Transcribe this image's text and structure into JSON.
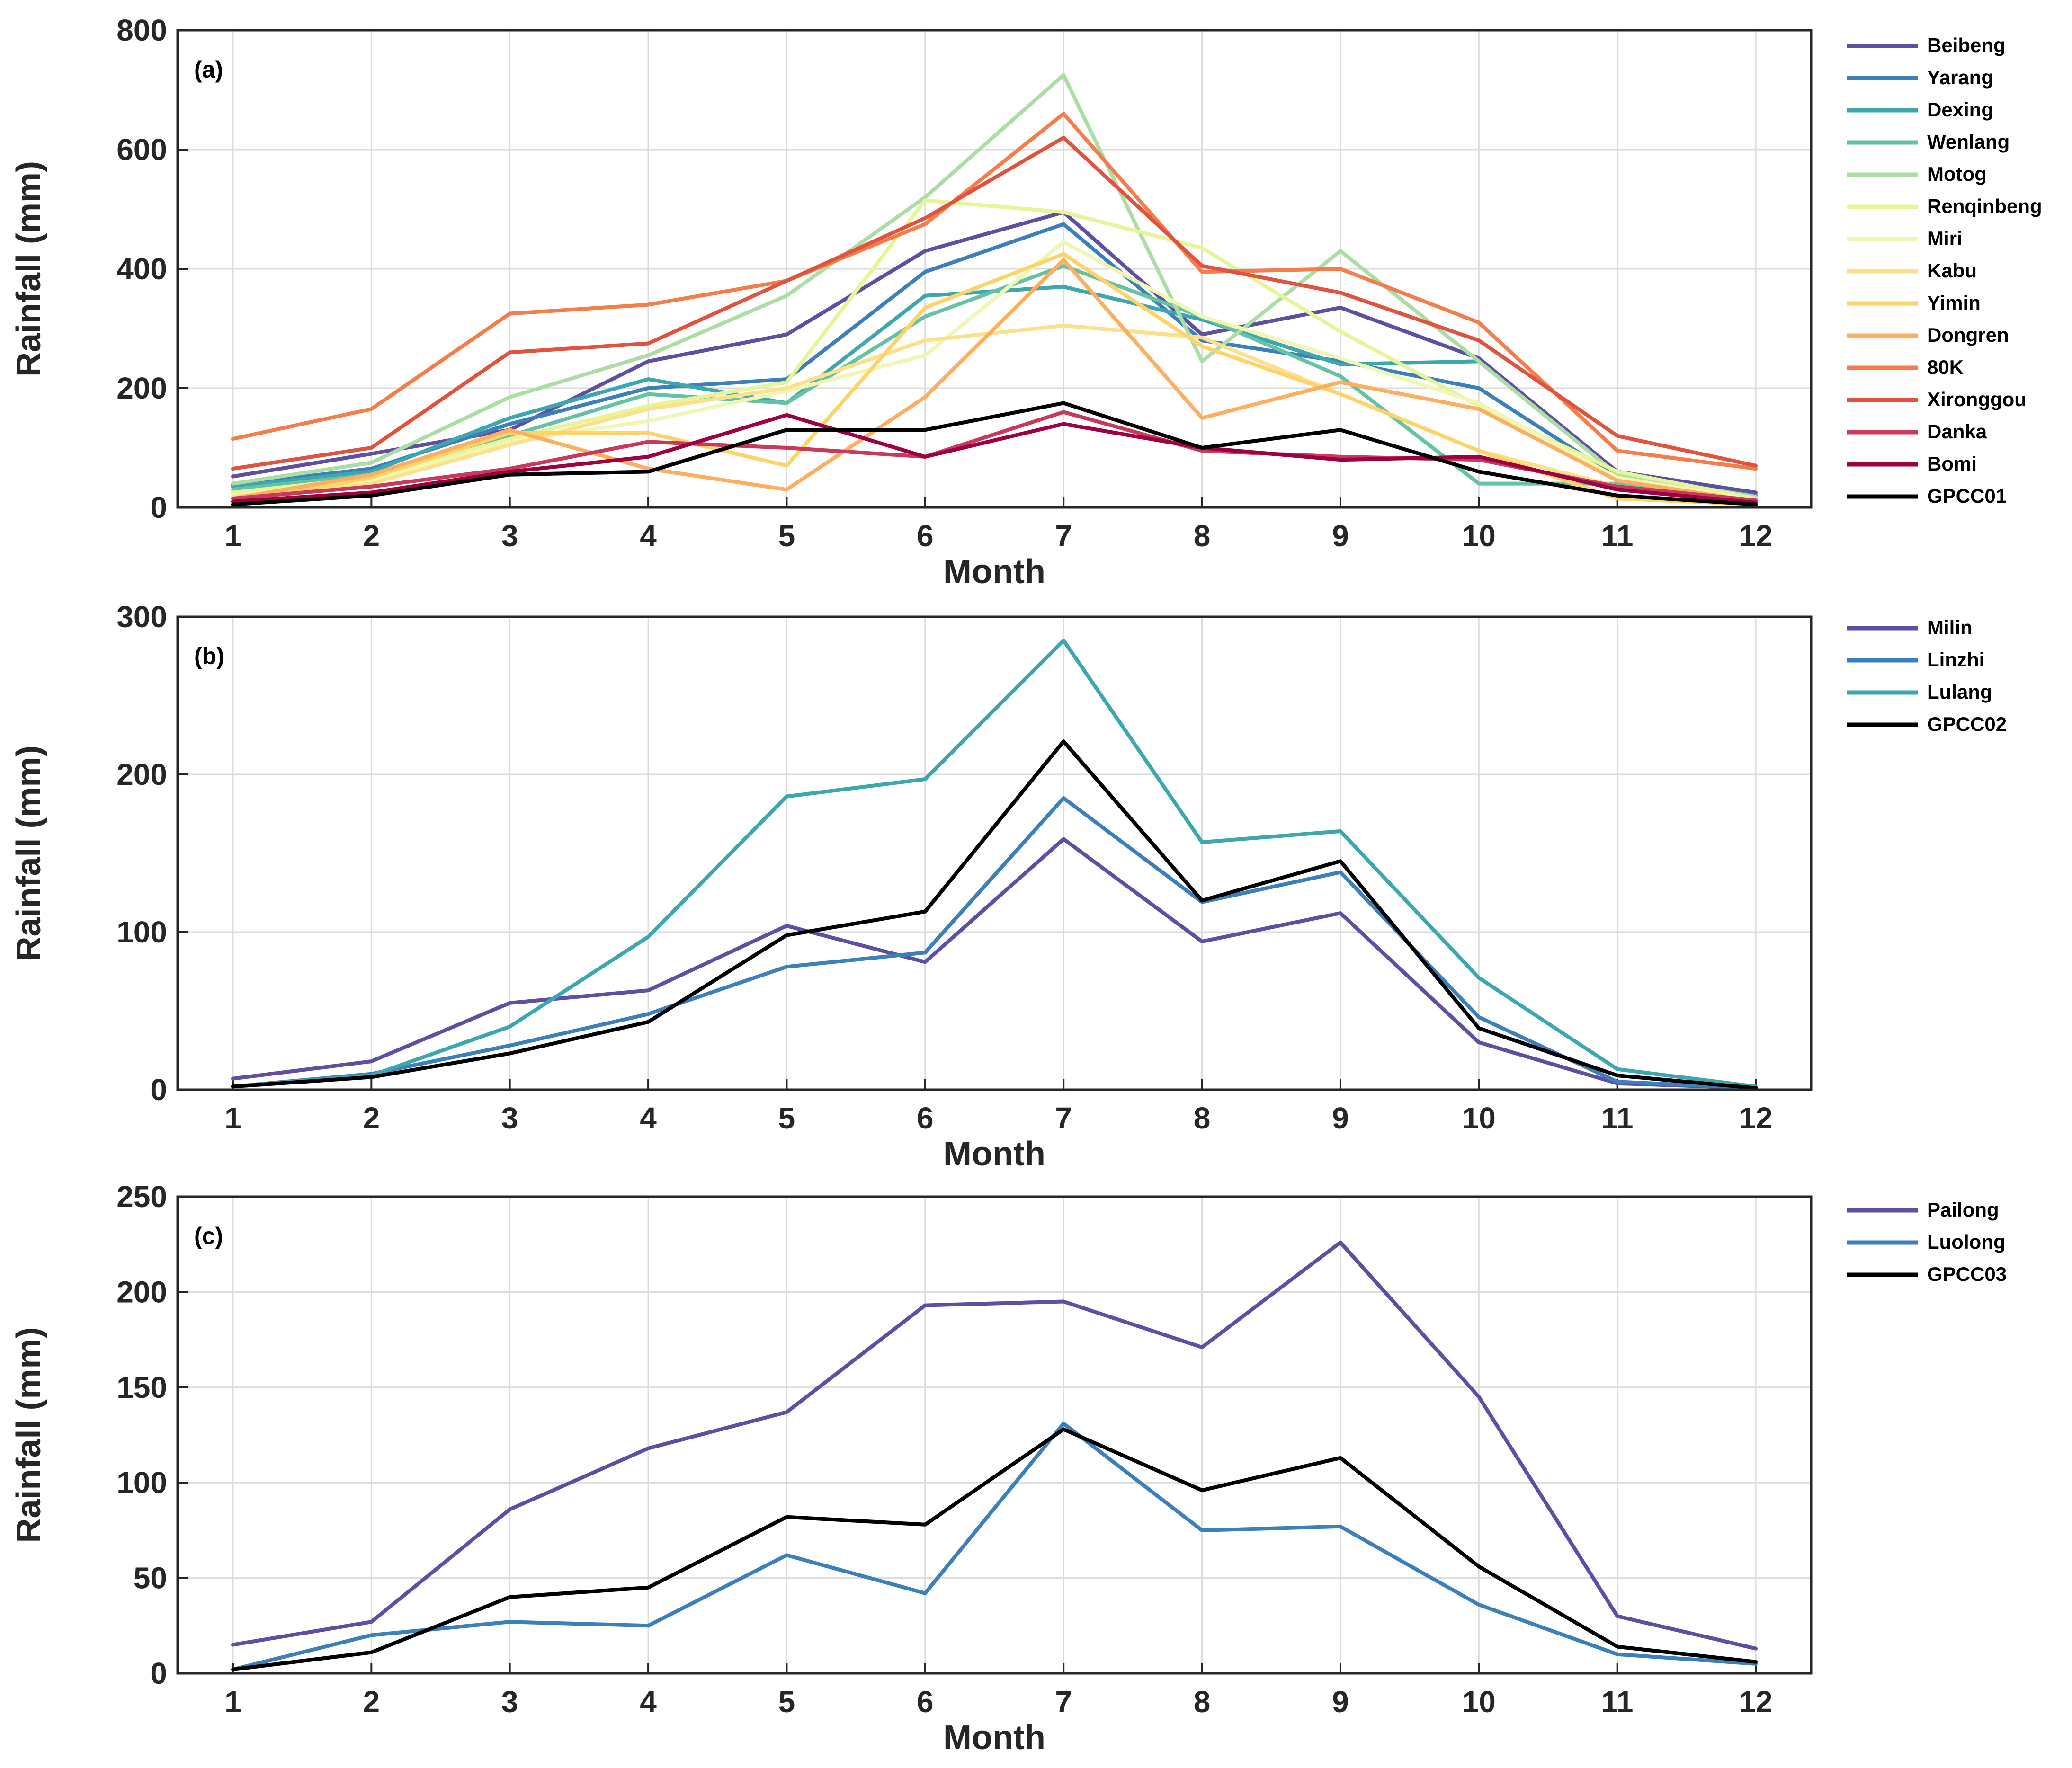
{
  "chart_data": [
    {
      "type": "line",
      "panel_label": "(a)",
      "xlabel": "Month",
      "ylabel": "Rainfall (mm)",
      "x": [
        1,
        2,
        3,
        4,
        5,
        6,
        7,
        8,
        9,
        10,
        11,
        12
      ],
      "xticks": [
        "1",
        "2",
        "3",
        "4",
        "5",
        "6",
        "7",
        "8",
        "9",
        "10",
        "11",
        "12"
      ],
      "ylim": [
        0,
        800
      ],
      "yticks": [
        0,
        200,
        400,
        600,
        800
      ],
      "grid": true,
      "legend_position": "right-outside",
      "series": [
        {
          "name": "Beibeng",
          "color": "#5e4fa2",
          "values": [
            52,
            90,
            130,
            245,
            290,
            430,
            495,
            290,
            335,
            250,
            60,
            25
          ]
        },
        {
          "name": "Yarang",
          "color": "#3b7fbb",
          "values": [
            38,
            65,
            140,
            200,
            215,
            395,
            475,
            280,
            245,
            200,
            50,
            20
          ]
        },
        {
          "name": "Dexing",
          "color": "#3ca7af",
          "values": [
            35,
            60,
            150,
            215,
            175,
            355,
            370,
            315,
            240,
            245,
            55,
            15
          ]
        },
        {
          "name": "Wenlang",
          "color": "#66c2a5",
          "values": [
            30,
            55,
            120,
            190,
            175,
            320,
            405,
            320,
            220,
            40,
            40,
            10
          ]
        },
        {
          "name": "Motog",
          "color": "#abdda4",
          "values": [
            40,
            75,
            185,
            255,
            355,
            520,
            725,
            245,
            430,
            245,
            55,
            18
          ]
        },
        {
          "name": "Renqinbeng",
          "color": "#e6f598",
          "values": [
            25,
            50,
            115,
            170,
            210,
            515,
            495,
            435,
            295,
            170,
            60,
            15
          ]
        },
        {
          "name": "Miri",
          "color": "#f0f7b4",
          "values": [
            20,
            45,
            110,
            145,
            195,
            255,
            445,
            320,
            250,
            175,
            50,
            12
          ]
        },
        {
          "name": "Kabu",
          "color": "#fee08b",
          "values": [
            18,
            40,
            105,
            165,
            200,
            280,
            305,
            285,
            190,
            95,
            35,
            10
          ]
        },
        {
          "name": "Yimin",
          "color": "#fdd36a",
          "values": [
            10,
            50,
            125,
            125,
            70,
            335,
            425,
            270,
            190,
            95,
            15,
            5
          ]
        },
        {
          "name": "Dongren",
          "color": "#fdae61",
          "values": [
            15,
            55,
            130,
            65,
            30,
            185,
            415,
            150,
            210,
            165,
            45,
            10
          ]
        },
        {
          "name": "80K",
          "color": "#f47d4a",
          "values": [
            115,
            165,
            325,
            340,
            380,
            475,
            660,
            395,
            400,
            310,
            95,
            65
          ]
        },
        {
          "name": "Xironggou",
          "color": "#e0533e",
          "values": [
            65,
            100,
            260,
            275,
            380,
            485,
            620,
            405,
            360,
            280,
            120,
            70
          ]
        },
        {
          "name": "Danka",
          "color": "#c93a5a",
          "values": [
            15,
            35,
            65,
            110,
            100,
            85,
            160,
            95,
            85,
            80,
            35,
            12
          ]
        },
        {
          "name": "Bomi",
          "color": "#9e0142",
          "values": [
            10,
            25,
            60,
            85,
            155,
            85,
            140,
            100,
            80,
            85,
            30,
            8
          ]
        },
        {
          "name": "GPCC01",
          "color": "#000000",
          "values": [
            5,
            20,
            55,
            60,
            130,
            130,
            175,
            100,
            130,
            60,
            20,
            5
          ]
        }
      ]
    },
    {
      "type": "line",
      "panel_label": "(b)",
      "xlabel": "Month",
      "ylabel": "Rainfall (mm)",
      "x": [
        1,
        2,
        3,
        4,
        5,
        6,
        7,
        8,
        9,
        10,
        11,
        12
      ],
      "xticks": [
        "1",
        "2",
        "3",
        "4",
        "5",
        "6",
        "7",
        "8",
        "9",
        "10",
        "11",
        "12"
      ],
      "ylim": [
        0,
        300
      ],
      "yticks": [
        0,
        100,
        200,
        300
      ],
      "grid": true,
      "legend_position": "right-outside",
      "series": [
        {
          "name": "Milin",
          "color": "#5e4fa2",
          "values": [
            7,
            18,
            55,
            63,
            104,
            81,
            159,
            94,
            112,
            30,
            4,
            1
          ]
        },
        {
          "name": "Linzhi",
          "color": "#3b7fbb",
          "values": [
            2,
            10,
            28,
            48,
            78,
            87,
            185,
            119,
            138,
            46,
            5,
            1
          ]
        },
        {
          "name": "Lulang",
          "color": "#3ca7af",
          "values": [
            2,
            9,
            40,
            97,
            186,
            197,
            285,
            157,
            164,
            71,
            13,
            2
          ]
        },
        {
          "name": "GPCC02",
          "color": "#000000",
          "values": [
            2,
            8,
            23,
            43,
            98,
            113,
            221,
            120,
            145,
            39,
            9,
            1
          ]
        }
      ]
    },
    {
      "type": "line",
      "panel_label": "(c)",
      "xlabel": "Month",
      "ylabel": "Rainfall (mm)",
      "x": [
        1,
        2,
        3,
        4,
        5,
        6,
        7,
        8,
        9,
        10,
        11,
        12
      ],
      "xticks": [
        "1",
        "2",
        "3",
        "4",
        "5",
        "6",
        "7",
        "8",
        "9",
        "10",
        "11",
        "12"
      ],
      "ylim": [
        0,
        250
      ],
      "yticks": [
        0,
        50,
        100,
        150,
        200,
        250
      ],
      "grid": true,
      "legend_position": "right-outside",
      "series": [
        {
          "name": "Pailong",
          "color": "#5e4fa2",
          "values": [
            15,
            27,
            86,
            118,
            137,
            193,
            195,
            171,
            226,
            145,
            30,
            13
          ]
        },
        {
          "name": "Luolong",
          "color": "#3b7fbb",
          "values": [
            2,
            20,
            27,
            25,
            62,
            42,
            131,
            75,
            77,
            36,
            10,
            5
          ]
        },
        {
          "name": "GPCC03",
          "color": "#000000",
          "values": [
            2,
            11,
            40,
            45,
            82,
            78,
            128,
            96,
            113,
            56,
            14,
            6
          ]
        }
      ]
    }
  ]
}
